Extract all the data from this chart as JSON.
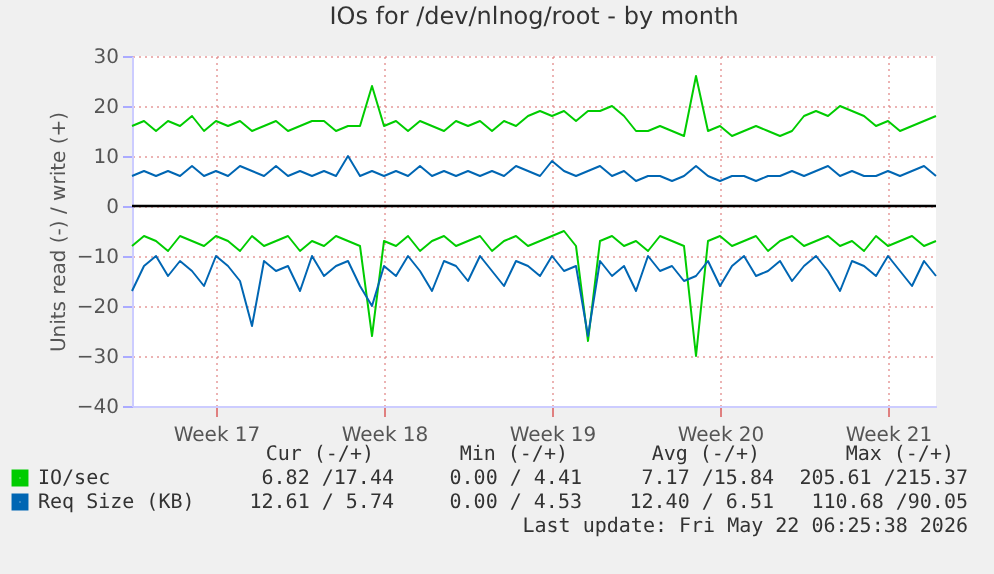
{
  "chart_data": {
    "type": "line",
    "title": "IOs for /dev/nlnog/root - by month",
    "ylabel": "Units read (-) / write (+)",
    "series": [
      {
        "name": "IO/sec",
        "color": "#00cc00",
        "values": [
          16,
          17,
          15,
          17,
          16,
          18,
          15,
          17,
          16,
          17,
          15,
          16,
          17,
          15,
          16,
          17,
          17,
          15,
          16,
          16,
          24,
          16,
          17,
          15,
          17,
          16,
          15,
          17,
          16,
          17,
          15,
          17,
          16,
          18,
          19,
          18,
          19,
          17,
          19,
          19,
          20,
          18,
          15,
          15,
          16,
          15,
          14,
          26,
          15,
          16,
          14,
          15,
          16,
          15,
          14,
          15,
          18,
          19,
          18,
          20,
          19,
          18,
          16,
          17,
          15,
          16,
          17,
          18
        ]
      },
      {
        "color": "#00cc00",
        "values": [
          -8,
          -6,
          -7,
          -9,
          -6,
          -7,
          -8,
          -6,
          -7,
          -9,
          -6,
          -8,
          -7,
          -6,
          -9,
          -7,
          -8,
          -6,
          -7,
          -8,
          -26,
          -7,
          -8,
          -6,
          -9,
          -7,
          -6,
          -8,
          -7,
          -6,
          -9,
          -7,
          -6,
          -8,
          -7,
          -6,
          -5,
          -8,
          -27,
          -7,
          -6,
          -8,
          -7,
          -9,
          -6,
          -7,
          -8,
          -30,
          -7,
          -6,
          -8,
          -7,
          -6,
          -9,
          -7,
          -6,
          -8,
          -7,
          -6,
          -8,
          -7,
          -9,
          -6,
          -8,
          -7,
          -6,
          -8,
          -7
        ]
      },
      {
        "name": "Req Size (KB)",
        "color": "#0066b3",
        "values": [
          6,
          7,
          6,
          7,
          6,
          8,
          6,
          7,
          6,
          8,
          7,
          6,
          8,
          6,
          7,
          6,
          7,
          6,
          10,
          6,
          7,
          6,
          7,
          6,
          8,
          6,
          7,
          6,
          7,
          6,
          7,
          6,
          8,
          7,
          6,
          9,
          7,
          6,
          7,
          8,
          6,
          7,
          5,
          6,
          6,
          5,
          6,
          8,
          6,
          5,
          6,
          6,
          5,
          6,
          6,
          7,
          6,
          7,
          8,
          6,
          7,
          6,
          6,
          7,
          6,
          7,
          8,
          6
        ]
      },
      {
        "color": "#0066b3",
        "values": [
          -17,
          -12,
          -10,
          -14,
          -11,
          -13,
          -16,
          -10,
          -12,
          -15,
          -24,
          -11,
          -13,
          -12,
          -17,
          -10,
          -14,
          -12,
          -11,
          -16,
          -20,
          -12,
          -14,
          -10,
          -13,
          -17,
          -11,
          -12,
          -15,
          -10,
          -13,
          -16,
          -11,
          -12,
          -14,
          -10,
          -13,
          -12,
          -26,
          -11,
          -14,
          -12,
          -17,
          -10,
          -13,
          -12,
          -15,
          -14,
          -11,
          -16,
          -12,
          -10,
          -14,
          -13,
          -11,
          -15,
          -12,
          -10,
          -13,
          -17,
          -11,
          -12,
          -14,
          -10,
          -13,
          -16,
          -11,
          -14
        ]
      }
    ],
    "categories": [
      null,
      null,
      null,
      null,
      null,
      null,
      null,
      "Week 17",
      null,
      null,
      null,
      null,
      null,
      null,
      null,
      null,
      null,
      null,
      null,
      null,
      null,
      "Week 18",
      null,
      null,
      null,
      null,
      null,
      null,
      null,
      null,
      null,
      null,
      null,
      null,
      null,
      "Week 19",
      null,
      null,
      null,
      null,
      null,
      null,
      null,
      null,
      null,
      null,
      null,
      null,
      null,
      "Week 20",
      null,
      null,
      null,
      null,
      null,
      null,
      null,
      null,
      null,
      null,
      null,
      null,
      null,
      "Week 21",
      null,
      null,
      null,
      null
    ],
    "ylim": [
      -40,
      30
    ],
    "yticks": [
      -40,
      -30,
      -20,
      -10,
      0,
      10,
      20,
      30
    ],
    "ref_lines": [
      {
        "axis": "y",
        "value": 0,
        "color": "#000000"
      }
    ],
    "grid": true,
    "legend": "bottom left",
    "marker": "none",
    "line_style": "solid",
    "annotations": [
      "Cur (-/+)",
      "Min (-/+)",
      "Avg (-/+)",
      "Max (-/+)",
      "6.82 /17.44",
      "0.00 / 4.41",
      "7.17 /15.84",
      "205.61 /215.37",
      "12.61 / 5.74",
      "0.00 / 4.53",
      "12.40 / 6.51",
      "110.68 /90.05",
      "Last update: Fri May 22 06:25:38 2026"
    ]
  }
}
